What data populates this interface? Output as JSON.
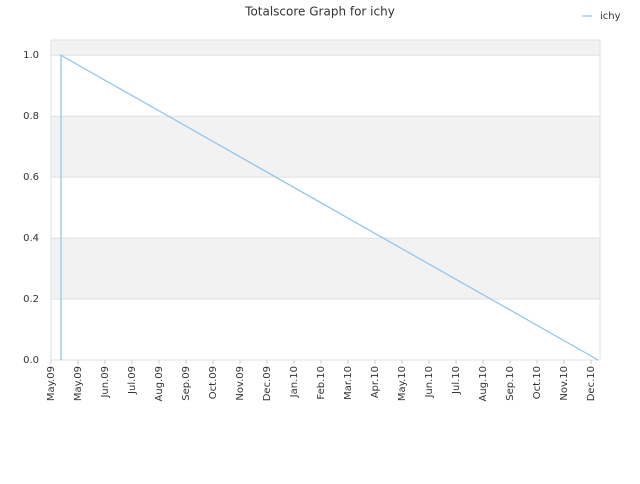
{
  "chart_data": {
    "type": "line",
    "title": "Totalscore Graph for ichy",
    "series": [
      {
        "name": "ichy",
        "color": "#88c4f4",
        "x": [
          0.37,
          0.37,
          20.26
        ],
        "values": [
          0,
          1.0,
          0
        ]
      }
    ],
    "xlim": [
      0,
      20.33
    ],
    "xticks": [
      {
        "value": 0,
        "label": "May.09"
      },
      {
        "value": 1,
        "label": "May.09"
      },
      {
        "value": 2,
        "label": "Jun.09"
      },
      {
        "value": 3,
        "label": "Jul.09"
      },
      {
        "value": 4,
        "label": "Aug.09"
      },
      {
        "value": 5,
        "label": "Sep.09"
      },
      {
        "value": 6,
        "label": "Oct.09"
      },
      {
        "value": 7,
        "label": "Nov.09"
      },
      {
        "value": 8,
        "label": "Dec.09"
      },
      {
        "value": 9,
        "label": "Jan.10"
      },
      {
        "value": 10,
        "label": "Feb.10"
      },
      {
        "value": 11,
        "label": "Mar.10"
      },
      {
        "value": 12,
        "label": "Apr.10"
      },
      {
        "value": 13,
        "label": "May.10"
      },
      {
        "value": 14,
        "label": "Jun.10"
      },
      {
        "value": 15,
        "label": "Jul.10"
      },
      {
        "value": 16,
        "label": "Aug.10"
      },
      {
        "value": 17,
        "label": "Sep.10"
      },
      {
        "value": 18,
        "label": "Oct.10"
      },
      {
        "value": 19,
        "label": "Nov.10"
      },
      {
        "value": 20,
        "label": "Dec.10"
      }
    ],
    "ylim": [
      0,
      1.05
    ],
    "yticks": [
      {
        "value": 0,
        "label": "0.0"
      },
      0.2,
      0.4,
      0.6,
      0.8,
      {
        "value": 1,
        "label": "1.0"
      }
    ],
    "grid": true,
    "legend": "top-right"
  }
}
